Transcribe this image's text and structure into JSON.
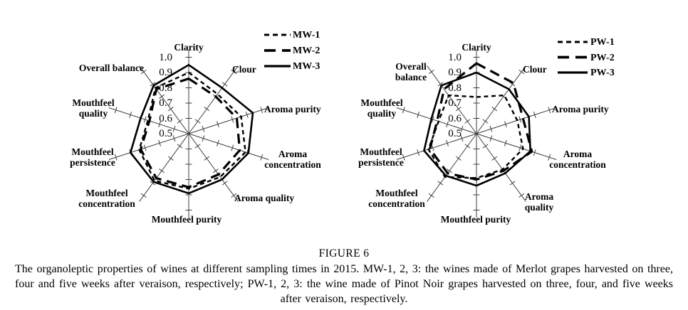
{
  "figure": {
    "caption_title": "FIGURE 6",
    "caption_body": "The organoleptic properties of wines at different sampling times in 2015. MW-1, 2, 3: the wines made of Merlot grapes harvested on three, four and five weeks after veraison, respectively; PW-1, 2, 3: the wine made of Pinot Noir grapes harvested on three, four, and five weeks after veraison, respectively."
  },
  "colors": {
    "series_line": "#000000",
    "axis_line": "#3f3f3f",
    "background": "#ffffff",
    "text": "#000000"
  },
  "chart_data": [
    {
      "type": "radar",
      "id": "mw",
      "categories": [
        "Clarity",
        "Clour",
        "Aroma purity",
        "Aroma concentration",
        "Aroma quality",
        "Mouthfeel purity",
        "Mouthfeel concentration",
        "Mouthfeel persistence",
        "Mouthfeel quality",
        "Overall balance"
      ],
      "axis_range": [
        0.5,
        1.0
      ],
      "scale_tick_labels": [
        "1.0",
        "0.9",
        "0.8",
        "0.7",
        "0.6",
        "0.5"
      ],
      "grid": "axis-ticks-only",
      "legend_position": "top-right",
      "series": [
        {
          "name": "MW-1",
          "line_style": "short-dash",
          "values": [
            0.9,
            0.82,
            0.86,
            0.89,
            0.85,
            0.86,
            0.88,
            0.84,
            0.78,
            0.87
          ]
        },
        {
          "name": "MW-2",
          "line_style": "long-dash",
          "values": [
            0.86,
            0.8,
            0.83,
            0.85,
            0.83,
            0.85,
            0.86,
            0.83,
            0.77,
            0.86
          ]
        },
        {
          "name": "MW-3",
          "line_style": "solid",
          "values": [
            0.95,
            0.87,
            0.94,
            0.91,
            0.87,
            0.89,
            0.89,
            0.9,
            0.83,
            0.89
          ]
        }
      ]
    },
    {
      "type": "radar",
      "id": "pw",
      "categories": [
        "Clarity",
        "Clour",
        "Aroma purity",
        "Aroma concentration",
        "Aroma quality",
        "Mouthfeel purity",
        "Mouthfeel concentration",
        "Mouthfeel persistence",
        "Mouthfeel quality",
        "Overall balance"
      ],
      "axis_range": [
        0.5,
        1.0
      ],
      "scale_tick_labels": [
        "1.0",
        "0.9",
        "0.8",
        "0.7",
        "0.6",
        "0.5"
      ],
      "grid": "axis-ticks-only",
      "legend_position": "top-right",
      "series": [
        {
          "name": "PW-1",
          "line_style": "short-dash",
          "values": [
            0.74,
            0.81,
            0.78,
            0.82,
            0.79,
            0.79,
            0.85,
            0.83,
            0.76,
            0.81
          ]
        },
        {
          "name": "PW-2",
          "line_style": "long-dash",
          "values": [
            0.96,
            0.91,
            0.82,
            0.88,
            0.8,
            0.8,
            0.82,
            0.82,
            0.77,
            0.86
          ]
        },
        {
          "name": "PW-3",
          "line_style": "solid",
          "values": [
            0.9,
            0.86,
            0.86,
            0.87,
            0.82,
            0.84,
            0.84,
            0.86,
            0.81,
            0.89
          ]
        }
      ]
    }
  ]
}
